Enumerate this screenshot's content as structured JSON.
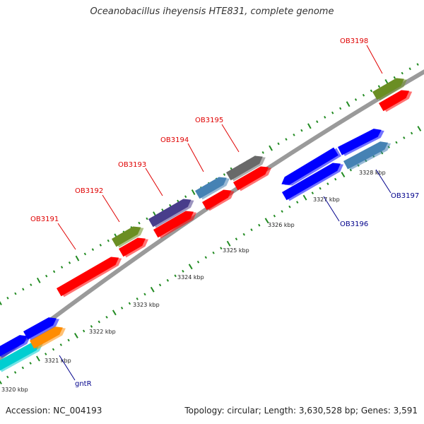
{
  "title": "Oceanobacillus iheyensis HTE831, complete genome",
  "footer": {
    "accession": "Accession: NC_004193",
    "topology": "Topology: circular; Length: 3,630,528 bp; Genes: 3,591"
  },
  "scale_labels": [
    "3320 kbp",
    "3321 kbp",
    "3322 kbp",
    "3323 kbp",
    "3324 kbp",
    "3325 kbp",
    "3326 kbp",
    "3327 kbp",
    "3328 kbp"
  ],
  "genes": [
    {
      "label": "OB3191",
      "color": "#ff0000",
      "label_color": "#e00000"
    },
    {
      "label": "OB3192",
      "color": "#6b8e23",
      "label_color": "#e00000"
    },
    {
      "label": "OB3193",
      "color": "#483d8b",
      "label_color": "#e00000"
    },
    {
      "label": "OB3194",
      "color": "#4682b4",
      "label_color": "#e00000"
    },
    {
      "label": "OB3195",
      "color": "#696969",
      "label_color": "#e00000"
    },
    {
      "label": "OB3198",
      "color": "#6b8e23",
      "label_color": "#e00000"
    },
    {
      "label": "OB3196",
      "color": "#0000ff",
      "label_color": "#00008b"
    },
    {
      "label": "OB3197",
      "color": "#4682b4",
      "label_color": "#00008b"
    },
    {
      "label": "gntR",
      "color": "#ff8c00",
      "label_color": "#00008b"
    }
  ],
  "colors": {
    "backbone": "#999999",
    "tick": "#228b22",
    "forward_cds": "#ff0000",
    "reverse_cds": "#0000ff",
    "other_cds": "#00ced1"
  }
}
